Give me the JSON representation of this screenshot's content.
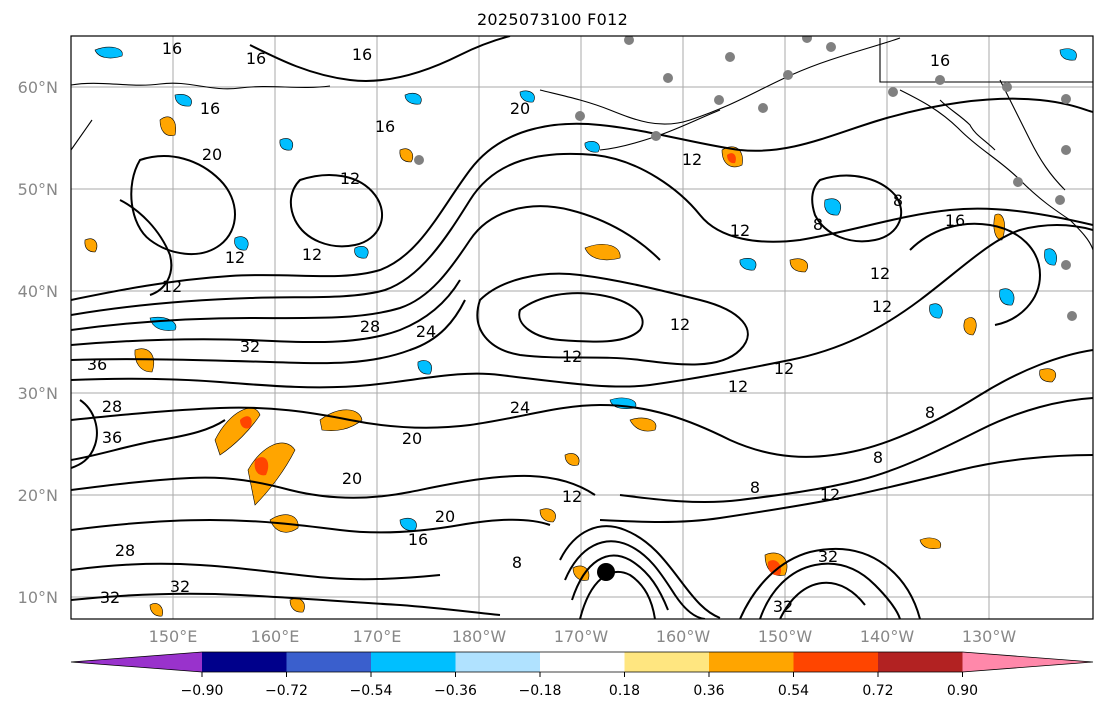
{
  "title": "2025073100 F012",
  "map": {
    "latitude_labels": [
      "60°N",
      "50°N",
      "40°N",
      "30°N",
      "20°N",
      "10°N"
    ],
    "longitude_labels": [
      "150°E",
      "160°E",
      "170°E",
      "180°W",
      "170°W",
      "160°W",
      "150°W",
      "140°W",
      "130°W"
    ],
    "contour_labels": [
      "16",
      "16",
      "16",
      "16",
      "20",
      "12",
      "12",
      "12",
      "16",
      "12",
      "28",
      "32",
      "36",
      "28",
      "36",
      "24",
      "20",
      "20",
      "20",
      "24",
      "12",
      "12",
      "12",
      "12",
      "12",
      "8",
      "12",
      "12",
      "8",
      "16",
      "16",
      "12",
      "8",
      "8",
      "8",
      "12",
      "28",
      "32",
      "16",
      "20",
      "8",
      "12",
      "32",
      "32",
      "32"
    ],
    "station_marker_color": "#808080",
    "storm_marker_color": "#000000"
  },
  "colorbar": {
    "tick_labels": [
      "−0.90",
      "−0.72",
      "−0.54",
      "−0.36",
      "−0.18",
      "0.18",
      "0.36",
      "0.54",
      "0.72",
      "0.90"
    ],
    "colors": [
      "#9932cc",
      "#00008b",
      "#3a5fcd",
      "#00bfff",
      "#b0e2ff",
      "#ffffff",
      "#ffe680",
      "#ffa500",
      "#ff4500",
      "#b22222",
      "#ff88aa"
    ]
  }
}
